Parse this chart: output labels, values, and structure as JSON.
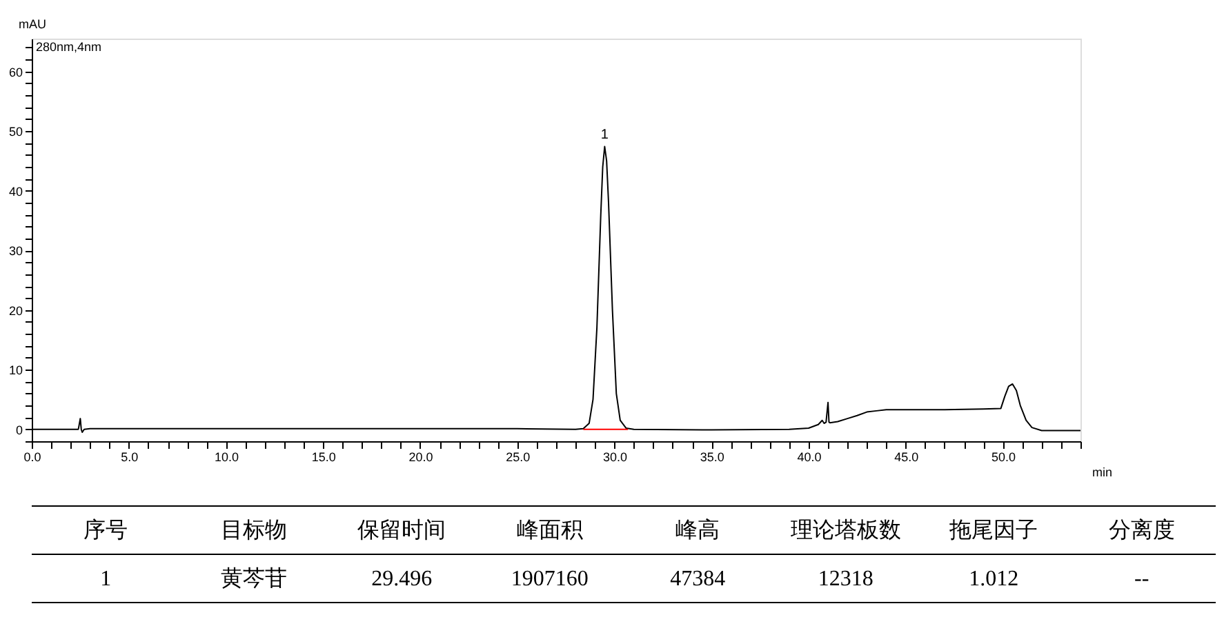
{
  "chart_data": {
    "type": "line",
    "xlabel": "min",
    "ylabel": "mAU",
    "xlim": [
      0,
      54
    ],
    "ylim": [
      -2,
      65.5
    ],
    "xticks": [
      {
        "value": 0,
        "label": "0.0"
      },
      {
        "value": 1,
        "label": null
      },
      {
        "value": 2,
        "label": null
      },
      {
        "value": 3,
        "label": null
      },
      {
        "value": 4,
        "label": null
      },
      {
        "value": 5,
        "label": "5.0"
      },
      {
        "value": 6,
        "label": null
      },
      {
        "value": 7,
        "label": null
      },
      {
        "value": 8,
        "label": null
      },
      {
        "value": 9,
        "label": null
      },
      {
        "value": 10,
        "label": "10.0"
      },
      {
        "value": 11,
        "label": null
      },
      {
        "value": 12,
        "label": null
      },
      {
        "value": 13,
        "label": null
      },
      {
        "value": 14,
        "label": null
      },
      {
        "value": 15,
        "label": "15.0"
      },
      {
        "value": 16,
        "label": null
      },
      {
        "value": 17,
        "label": null
      },
      {
        "value": 18,
        "label": null
      },
      {
        "value": 19,
        "label": null
      },
      {
        "value": 20,
        "label": "20.0"
      },
      {
        "value": 21,
        "label": null
      },
      {
        "value": 22,
        "label": null
      },
      {
        "value": 23,
        "label": null
      },
      {
        "value": 24,
        "label": null
      },
      {
        "value": 25,
        "label": "25.0"
      },
      {
        "value": 26,
        "label": null
      },
      {
        "value": 27,
        "label": null
      },
      {
        "value": 28,
        "label": null
      },
      {
        "value": 29,
        "label": null
      },
      {
        "value": 30,
        "label": "30.0"
      },
      {
        "value": 31,
        "label": null
      },
      {
        "value": 32,
        "label": null
      },
      {
        "value": 33,
        "label": null
      },
      {
        "value": 34,
        "label": null
      },
      {
        "value": 35,
        "label": "35.0"
      },
      {
        "value": 36,
        "label": null
      },
      {
        "value": 37,
        "label": null
      },
      {
        "value": 38,
        "label": null
      },
      {
        "value": 39,
        "label": null
      },
      {
        "value": 40,
        "label": "40.0"
      },
      {
        "value": 41,
        "label": null
      },
      {
        "value": 42,
        "label": null
      },
      {
        "value": 43,
        "label": null
      },
      {
        "value": 44,
        "label": null
      },
      {
        "value": 45,
        "label": "45.0"
      },
      {
        "value": 46,
        "label": null
      },
      {
        "value": 47,
        "label": null
      },
      {
        "value": 48,
        "label": null
      },
      {
        "value": 49,
        "label": null
      },
      {
        "value": 50,
        "label": "50.0"
      },
      {
        "value": 51,
        "label": null
      },
      {
        "value": 52,
        "label": null
      },
      {
        "value": 53,
        "label": null
      },
      {
        "value": 54,
        "label": null
      }
    ],
    "yticks": [
      {
        "value": -2,
        "label": null
      },
      0,
      {
        "value": 2,
        "label": null
      },
      {
        "value": 4,
        "label": null
      },
      {
        "value": 6,
        "label": null
      },
      {
        "value": 8,
        "label": null
      },
      10,
      {
        "value": 12,
        "label": null
      },
      {
        "value": 14,
        "label": null
      },
      {
        "value": 16,
        "label": null
      },
      {
        "value": 18,
        "label": null
      },
      20,
      {
        "value": 22,
        "label": null
      },
      {
        "value": 24,
        "label": null
      },
      {
        "value": 26,
        "label": null
      },
      {
        "value": 28,
        "label": null
      },
      30,
      {
        "value": 32,
        "label": null
      },
      {
        "value": 34,
        "label": null
      },
      {
        "value": 36,
        "label": null
      },
      {
        "value": 38,
        "label": null
      },
      40,
      {
        "value": 42,
        "label": null
      },
      {
        "value": 44,
        "label": null
      },
      {
        "value": 46,
        "label": null
      },
      {
        "value": 48,
        "label": null
      },
      50,
      {
        "value": 52,
        "label": null
      },
      {
        "value": 54,
        "label": null
      },
      {
        "value": 56,
        "label": null
      },
      {
        "value": 58,
        "label": null
      },
      60,
      {
        "value": 62,
        "label": null
      },
      {
        "value": 64,
        "label": null
      }
    ],
    "grid": false,
    "marker": "none",
    "line_style": "solid",
    "series": [
      {
        "color": "#000000",
        "x": [
          0,
          2.4,
          2.5,
          2.55,
          2.6,
          2.7,
          3,
          5,
          10,
          15,
          20,
          25,
          28,
          28.4,
          28.7,
          28.9,
          29.1,
          29.3,
          29.4,
          29.5,
          29.6,
          29.7,
          29.9,
          30.1,
          30.3,
          30.6,
          31,
          35,
          39,
          40,
          40.5,
          40.7,
          40.8,
          40.9,
          41.0,
          41.05,
          41.1,
          41.5,
          42,
          42.5,
          43,
          43.5,
          44,
          45,
          47,
          49,
          49.9,
          50.1,
          50.3,
          50.5,
          50.7,
          50.9,
          51.2,
          51.5,
          52,
          54
        ],
        "values": [
          0,
          0,
          1.8,
          0,
          -0.5,
          0,
          0.1,
          0.1,
          0.1,
          0.1,
          0.1,
          0.1,
          0,
          0.1,
          1,
          5,
          17,
          36,
          44,
          47.4,
          45,
          38,
          20,
          6,
          1.5,
          0.2,
          0,
          -0.1,
          0,
          0.2,
          0.8,
          1.5,
          1.0,
          1.2,
          4.5,
          1.2,
          1.1,
          1.3,
          1.8,
          2.3,
          2.9,
          3.1,
          3.3,
          3.3,
          3.3,
          3.4,
          3.5,
          5.5,
          7.2,
          7.6,
          6.5,
          4,
          1.5,
          0.3,
          -0.2,
          -0.2
        ]
      },
      {
        "color": "#ff0000",
        "x": [
          28.4,
          30.7
        ],
        "values": [
          0,
          0
        ]
      }
    ],
    "annotations": [
      "280nm,4nm",
      {
        "text": "1",
        "x": 29.5,
        "y": 47.4
      },
      "序号",
      "目标物",
      "保留时间",
      "峰面积",
      "峰高",
      "理论塔板数",
      "拖尾因子",
      "分离度",
      "1",
      "黄芩苷",
      "29.496",
      "1907160",
      "47384",
      "12318",
      "1.012",
      "--"
    ]
  }
}
